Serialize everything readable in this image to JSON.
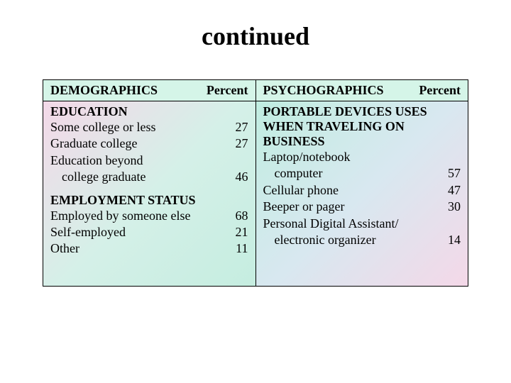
{
  "title": "continued",
  "table": {
    "left": {
      "header_label": "DEMOGRAPHICS",
      "header_value": "Percent",
      "sections": {
        "education": {
          "title": "EDUCATION",
          "rows": [
            {
              "label": "Some college or less",
              "value": "27"
            },
            {
              "label": "Graduate college",
              "value": "27"
            },
            {
              "label": "Education beyond",
              "value": ""
            }
          ],
          "indent_row": {
            "label": "college graduate",
            "value": "46"
          }
        },
        "employment": {
          "title": "EMPLOYMENT STATUS",
          "rows": [
            {
              "label": "Employed by someone else",
              "value": "68"
            },
            {
              "label": "Self-employed",
              "value": "21"
            },
            {
              "label": "Other",
              "value": "11"
            }
          ]
        }
      }
    },
    "right": {
      "header_label": "PSYCHOGRAPHICS",
      "header_value": "Percent",
      "sections": {
        "devices": {
          "title_line1": "PORTABLE DEVICES USES",
          "title_line2": "WHEN TRAVELING ON",
          "title_line3": "BUSINESS",
          "rows": [
            {
              "label": "Laptop/notebook",
              "value": ""
            }
          ],
          "indent_row1": {
            "label": "computer",
            "value": "57"
          },
          "rows2": [
            {
              "label": "Cellular phone",
              "value": "47"
            },
            {
              "label": "Beeper or pager",
              "value": "30"
            },
            {
              "label": "Personal Digital Assistant/",
              "value": ""
            }
          ],
          "indent_row2": {
            "label": "electronic organizer",
            "value": "14"
          }
        }
      }
    }
  },
  "colors": {
    "text": "#000000",
    "border": "#000000",
    "bg": "#ffffff"
  }
}
